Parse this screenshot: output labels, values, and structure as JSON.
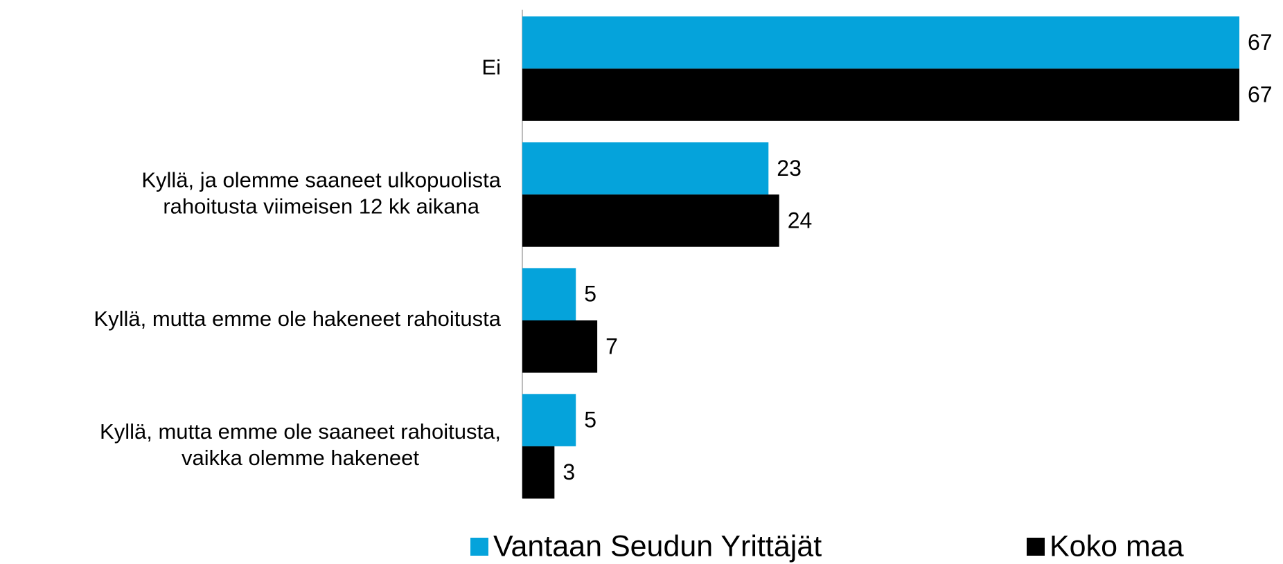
{
  "chart_data": {
    "type": "bar",
    "orientation": "horizontal",
    "categories": [
      [
        "Ei"
      ],
      [
        "Kyllä, ja olemme saaneet ulkopuolista",
        "rahoitusta viimeisen 12 kk aikana"
      ],
      [
        "Kyllä, mutta emme ole hakeneet rahoitusta"
      ],
      [
        "Kyllä, mutta emme ole saaneet rahoitusta,",
        "vaikka olemme hakeneet"
      ]
    ],
    "series": [
      {
        "name": "Vantaan Seudun Yrittäjät",
        "color": "#05a3db",
        "values": [
          67,
          23,
          5,
          5
        ]
      },
      {
        "name": "Koko maa",
        "color": "#000000",
        "values": [
          67,
          24,
          7,
          3
        ]
      }
    ],
    "legend": "bottom"
  }
}
